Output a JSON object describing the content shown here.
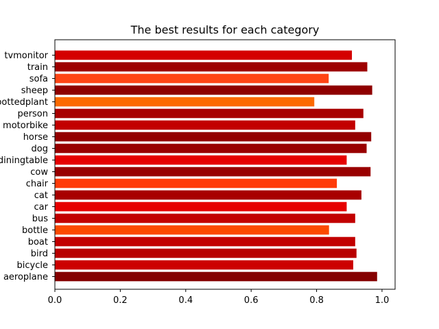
{
  "chart_data": {
    "type": "bar",
    "orientation": "horizontal",
    "title": "The best results for each category",
    "xlabel": "",
    "ylabel": "",
    "xlim": [
      0,
      1.04
    ],
    "xticks": [
      0.0,
      0.2,
      0.4,
      0.6,
      0.8,
      1.0
    ],
    "xtick_labels": [
      "0.0",
      "0.2",
      "0.4",
      "0.6",
      "0.8",
      "1.0"
    ],
    "grid": false,
    "categories": [
      "aeroplane",
      "bicycle",
      "bird",
      "boat",
      "bottle",
      "bus",
      "car",
      "cat",
      "chair",
      "cow",
      "diningtable",
      "dog",
      "horse",
      "motorbike",
      "person",
      "pottedplant",
      "sheep",
      "sofa",
      "train",
      "tvmonitor"
    ],
    "values": [
      0.985,
      0.912,
      0.922,
      0.918,
      0.838,
      0.918,
      0.892,
      0.937,
      0.862,
      0.965,
      0.892,
      0.953,
      0.967,
      0.918,
      0.943,
      0.793,
      0.97,
      0.837,
      0.955,
      0.908
    ],
    "colors": [
      "#850000",
      "#cc0000",
      "#b80000",
      "#c20000",
      "#fc4a00",
      "#c20000",
      "#e60000",
      "#a80000",
      "#ff3c0a",
      "#990000",
      "#e60000",
      "#990000",
      "#940000",
      "#c20000",
      "#a80000",
      "#fc6a00",
      "#8f0000",
      "#ff4515",
      "#9e0000",
      "#d40000"
    ]
  }
}
